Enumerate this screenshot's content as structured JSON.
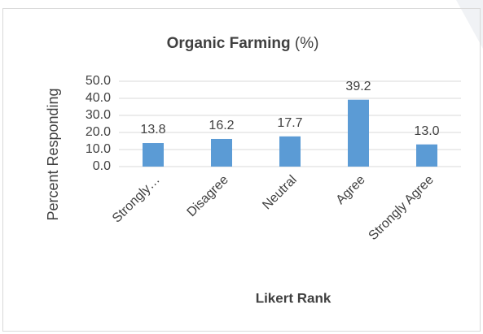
{
  "chart_data": {
    "type": "bar",
    "title": "Organic Farming",
    "title_unit": "(%)",
    "x_label": "Likert Rank",
    "y_label": "Percent Responding",
    "categories": [
      "Strongly…",
      "Disagree",
      "Neutral",
      "Agree",
      "Strongly Agree"
    ],
    "values": [
      13.8,
      16.2,
      17.7,
      39.2,
      13.0
    ],
    "value_labels": [
      "13.8",
      "16.2",
      "17.7",
      "39.2",
      "13.0"
    ],
    "color": "#5b9bd5",
    "ylim": [
      0,
      50
    ],
    "yticks": [
      {
        "value": 0,
        "label": "0.0"
      },
      {
        "value": 10,
        "label": "10.0"
      },
      {
        "value": 20,
        "label": "20.0"
      },
      {
        "value": 30,
        "label": "30.0"
      },
      {
        "value": 40,
        "label": "40.0"
      },
      {
        "value": 50,
        "label": "50.0"
      }
    ],
    "grid": true
  }
}
